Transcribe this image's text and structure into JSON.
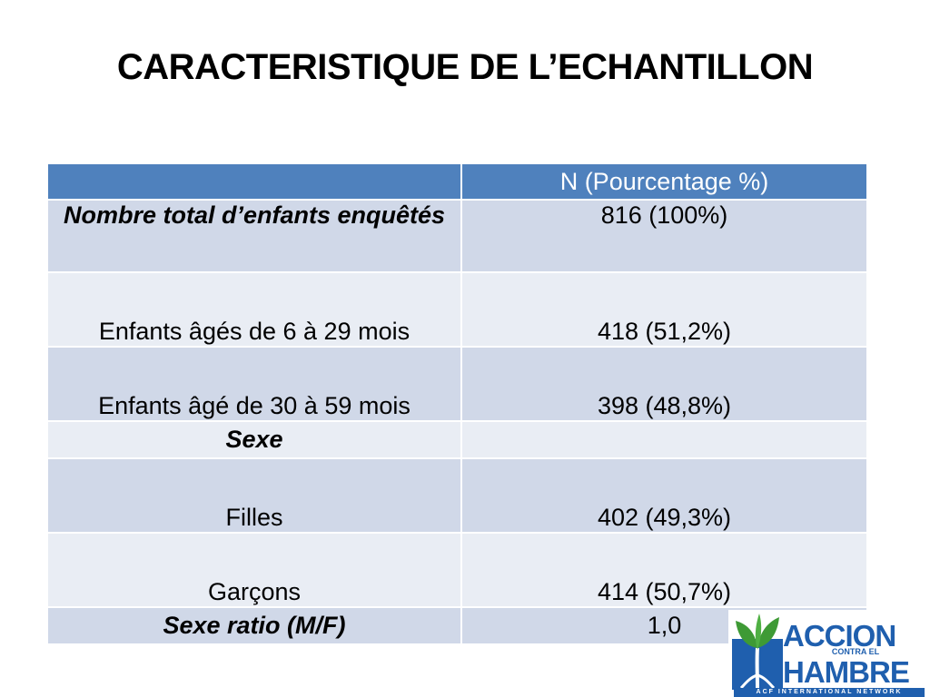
{
  "title": "CARACTERISTIQUE DE L’ECHANTILLON",
  "table": {
    "header": [
      "",
      "N (Pourcentage %)"
    ],
    "rows": [
      {
        "label": "Nombre total d’enfants enquêtés",
        "value": "816 (100%)"
      },
      {
        "label": "Enfants âgés de 6 à 29 mois",
        "value": "418 (51,2%)"
      },
      {
        "label": "Enfants âgé de 30 à 59 mois",
        "value": "398 (48,8%)"
      },
      {
        "label": "Sexe",
        "value": ""
      },
      {
        "label": "Filles",
        "value": "402 (49,3%)"
      },
      {
        "label": "Garçons",
        "value": "414 (50,7%)"
      },
      {
        "label": "Sexe ratio (M/F)",
        "value": "1,0"
      }
    ]
  },
  "logo": {
    "line1": "ACCION",
    "line2": "CONTRA EL",
    "line3": "HAMBRE",
    "tagline": "ACF INTERNATIONAL NETWORK"
  },
  "colors": {
    "header_bg": "#4f81bd",
    "row_dark": "#d0d8e8",
    "row_light": "#e9edf4",
    "logo_blue": "#1f5fae",
    "logo_green": "#3e9a35"
  }
}
